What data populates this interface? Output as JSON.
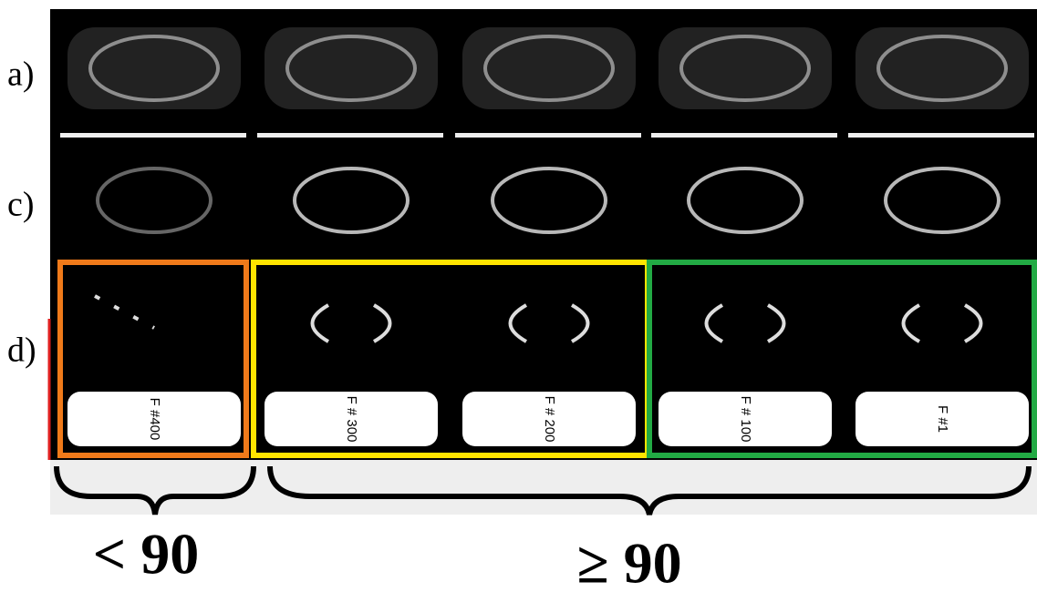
{
  "row_labels": [
    "a)",
    "c)",
    "d)"
  ],
  "frame_labels": [
    "F #400",
    "F # 300",
    "F # 200",
    "F # 100",
    "F #1"
  ],
  "groups": [
    "< 90",
    "≥ 90"
  ]
}
